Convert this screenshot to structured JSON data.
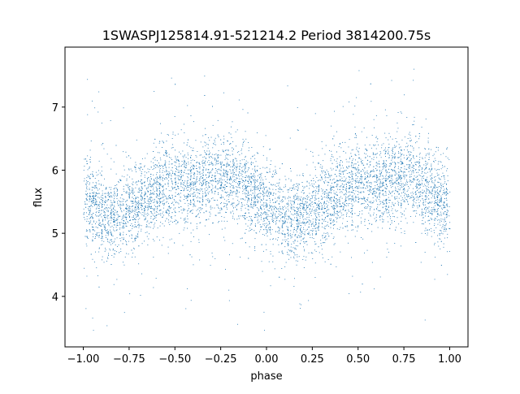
{
  "chart_data": {
    "type": "scatter",
    "title": "1SWASPJ125814.91-521214.2 Period 3814200.75s",
    "xlabel": "phase",
    "ylabel": "flux",
    "xlim": [
      -1.1,
      1.1
    ],
    "ylim": [
      3.2,
      7.95
    ],
    "xticks": [
      -1.0,
      -0.75,
      -0.5,
      -0.25,
      0.0,
      0.25,
      0.5,
      0.75,
      1.0
    ],
    "xtick_labels": [
      "−1.00",
      "−0.75",
      "−0.50",
      "−0.25",
      "0.00",
      "0.25",
      "0.50",
      "0.75",
      "1.00"
    ],
    "yticks": [
      4,
      5,
      6,
      7
    ],
    "ytick_labels": [
      "4",
      "5",
      "6",
      "7"
    ],
    "grid": false,
    "marker_color": "#1f77b4",
    "series": [
      {
        "description_phase_range": [
          -1.0,
          1.0
        ],
        "trend_x": [
          -1.0,
          -0.9,
          -0.8,
          -0.7,
          -0.6,
          -0.5,
          -0.4,
          -0.3,
          -0.2,
          -0.1,
          0.0,
          0.1,
          0.2,
          0.3,
          0.4,
          0.5,
          0.6,
          0.7,
          0.8,
          0.9,
          1.0
        ],
        "trend_y": [
          5.6,
          5.25,
          5.3,
          5.45,
          5.65,
          5.8,
          5.75,
          5.85,
          5.9,
          5.7,
          5.45,
          5.2,
          5.3,
          5.45,
          5.65,
          5.8,
          5.75,
          5.85,
          5.9,
          5.6,
          5.4
        ]
      }
    ]
  }
}
